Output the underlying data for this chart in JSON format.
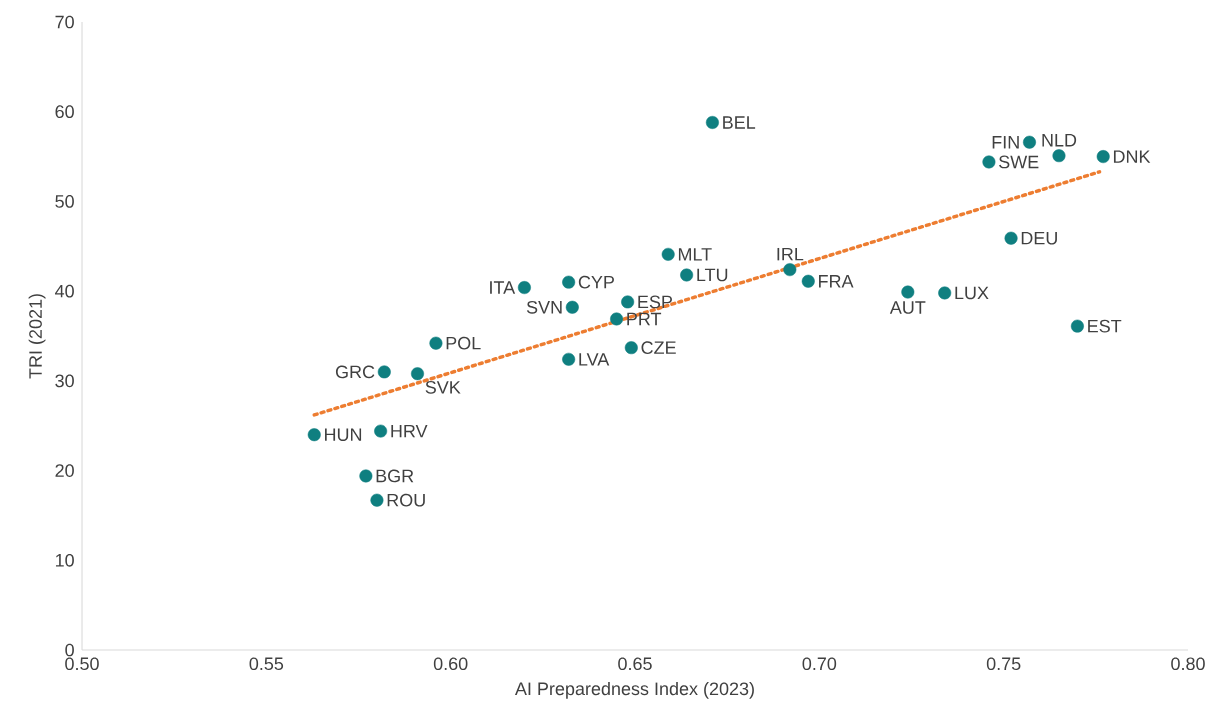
{
  "chart_data": {
    "type": "scatter",
    "xlabel": "AI Preparedness Index (2023)",
    "ylabel": "TRI (2021)",
    "xlim": [
      0.5,
      0.8
    ],
    "ylim": [
      0,
      70
    ],
    "xticks": [
      {
        "value": 0.5,
        "label": "0.50"
      },
      {
        "value": 0.55,
        "label": "0.55"
      },
      {
        "value": 0.6,
        "label": "0.60"
      },
      {
        "value": 0.65,
        "label": "0.65"
      },
      {
        "value": 0.7,
        "label": "0.70"
      },
      {
        "value": 0.75,
        "label": "0.75"
      },
      {
        "value": 0.8,
        "label": "0.80"
      }
    ],
    "yticks": [
      0,
      10,
      20,
      30,
      40,
      50,
      60,
      70
    ],
    "series": [
      {
        "marker": "circle",
        "color": "#0f7f80",
        "x": [
          0.563,
          0.577,
          0.58,
          0.581,
          0.582,
          0.591,
          0.596,
          0.62,
          0.632,
          0.633,
          0.632,
          0.648,
          0.645,
          0.649,
          0.659,
          0.664,
          0.671,
          0.692,
          0.697,
          0.724,
          0.734,
          0.746,
          0.757,
          0.765,
          0.777,
          0.752,
          0.77
        ],
        "values": [
          24.0,
          19.4,
          16.7,
          24.4,
          31.0,
          30.8,
          34.2,
          40.4,
          41.0,
          38.2,
          32.4,
          38.8,
          36.9,
          33.7,
          44.1,
          41.8,
          58.8,
          42.4,
          41.1,
          39.9,
          39.8,
          54.4,
          56.6,
          55.1,
          55.0,
          45.9,
          36.1
        ]
      },
      {
        "type": "line",
        "marker": "none",
        "line_style": "dotted",
        "color": "#ed7d31",
        "x": [
          0.563,
          0.776
        ],
        "values": [
          26.2,
          53.3
        ]
      }
    ],
    "annotations": [
      {
        "text": "HUN",
        "x": 0.563,
        "y": 24.0
      },
      {
        "text": "BGR",
        "x": 0.577,
        "y": 19.4
      },
      {
        "text": "ROU",
        "x": 0.58,
        "y": 16.7
      },
      {
        "text": "HRV",
        "x": 0.581,
        "y": 24.4
      },
      {
        "text": "GRC",
        "x": 0.582,
        "y": 31.0
      },
      {
        "text": "SVK",
        "x": 0.591,
        "y": 30.8
      },
      {
        "text": "POL",
        "x": 0.596,
        "y": 34.2
      },
      {
        "text": "ITA",
        "x": 0.62,
        "y": 40.4
      },
      {
        "text": "CYP",
        "x": 0.632,
        "y": 41.0
      },
      {
        "text": "SVN",
        "x": 0.633,
        "y": 38.2
      },
      {
        "text": "LVA",
        "x": 0.632,
        "y": 32.4
      },
      {
        "text": "ESP",
        "x": 0.648,
        "y": 38.8
      },
      {
        "text": "PRT",
        "x": 0.645,
        "y": 36.9
      },
      {
        "text": "CZE",
        "x": 0.649,
        "y": 33.7
      },
      {
        "text": "MLT",
        "x": 0.659,
        "y": 44.1
      },
      {
        "text": "LTU",
        "x": 0.664,
        "y": 41.8
      },
      {
        "text": "BEL",
        "x": 0.671,
        "y": 58.8
      },
      {
        "text": "IRL",
        "x": 0.692,
        "y": 42.4
      },
      {
        "text": "FRA",
        "x": 0.697,
        "y": 41.1
      },
      {
        "text": "AUT",
        "x": 0.724,
        "y": 39.9
      },
      {
        "text": "LUX",
        "x": 0.734,
        "y": 39.8
      },
      {
        "text": "SWE",
        "x": 0.746,
        "y": 54.4
      },
      {
        "text": "FIN",
        "x": 0.757,
        "y": 56.6
      },
      {
        "text": "NLD",
        "x": 0.765,
        "y": 55.1
      },
      {
        "text": "DNK",
        "x": 0.777,
        "y": 55.0
      },
      {
        "text": "DEU",
        "x": 0.752,
        "y": 45.9
      },
      {
        "text": "EST",
        "x": 0.77,
        "y": 36.1
      }
    ]
  }
}
